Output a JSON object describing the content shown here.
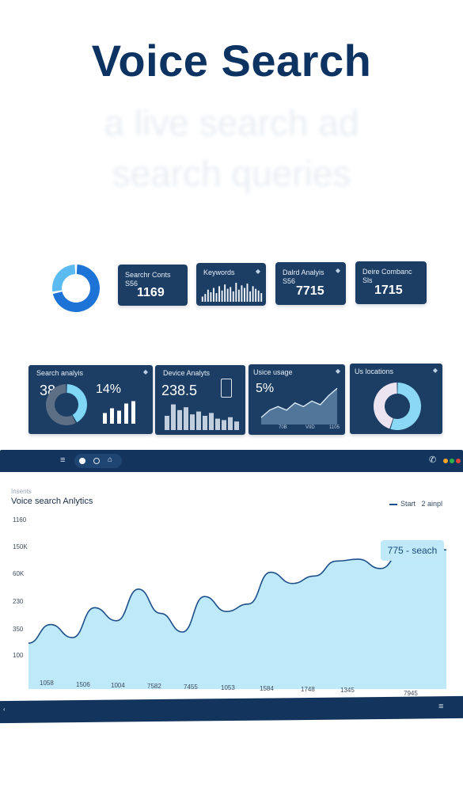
{
  "hero": {
    "title": "Voice Search",
    "ghost_line1": "a live search ad",
    "ghost_line2": "search queries"
  },
  "stat_tiles": [
    {
      "title": "Searchr Conts S56",
      "value": "1169"
    },
    {
      "title": "Keywords",
      "value": ""
    },
    {
      "title": "Dalrd Analyis S56",
      "value": "7715"
    },
    {
      "title": "Deire Combanc Sls",
      "value": "1715"
    }
  ],
  "panels": {
    "search_analysis": {
      "title": "Search analyis",
      "value_a": "38",
      "value_b": "14%"
    },
    "device_analysis": {
      "title": "Device Analyts",
      "value": "238.5"
    },
    "voice_usage": {
      "title": "Usice usage",
      "value": "5%",
      "xticks": [
        "70B",
        "VIID",
        "1105"
      ]
    },
    "locations": {
      "title": "Us locations"
    }
  },
  "window": {
    "breadcrumb": "Insents",
    "title": "Voice search Anlytics",
    "legend": [
      {
        "label": "Start"
      },
      {
        "label": "2 ainpl"
      }
    ],
    "callout": "775 - seach",
    "icons": [
      "menu-icon",
      "circle-filled-icon",
      "circle-icon",
      "lock-icon",
      "phone-icon"
    ],
    "colors": {
      "frame": "#13355d",
      "area": "#bde9f8",
      "line": "#1d4f8a",
      "dot_orange": "#f0a428",
      "dot_green": "#2fb24a",
      "dot_red": "#e2443a"
    }
  },
  "chart_data": {
    "type": "area",
    "title": "Voice search Anlytics",
    "xlabel": "",
    "ylabel": "",
    "yticks": [
      "1160",
      "150K",
      "60K",
      "230",
      "350",
      "100"
    ],
    "xticks": [
      "1058",
      "1506",
      "1004",
      "7582",
      "7455",
      "1053",
      "1584",
      "1748",
      "1345",
      "7945"
    ],
    "x": [
      0,
      1,
      2,
      3,
      4,
      5,
      6,
      7,
      8,
      9,
      10,
      11,
      12,
      13,
      14,
      15,
      16,
      17,
      18,
      19
    ],
    "values": [
      110,
      160,
      125,
      205,
      170,
      255,
      190,
      140,
      235,
      195,
      215,
      300,
      270,
      290,
      330,
      335,
      310,
      355,
      365,
      360
    ],
    "ylim": [
      0,
      420
    ],
    "grid": false,
    "legend_position": "top-right",
    "series": [
      {
        "name": "Start",
        "values": [
          110,
          160,
          125,
          205,
          170,
          255,
          190,
          140,
          235,
          195,
          215,
          300,
          270,
          290,
          330,
          335,
          310,
          355,
          365,
          360
        ]
      }
    ]
  },
  "mini_charts": {
    "keywords_bars": [
      6,
      9,
      14,
      11,
      16,
      10,
      18,
      13,
      20,
      15,
      17,
      12,
      22,
      14,
      19,
      16,
      21,
      12,
      18,
      15,
      13,
      10
    ],
    "search_bars": [
      0.45,
      0.65,
      0.55,
      0.85,
      0.95
    ],
    "device_bars": [
      0.5,
      0.9,
      0.7,
      0.8,
      0.55,
      0.65,
      0.5,
      0.6,
      0.4,
      0.35,
      0.45,
      0.3
    ],
    "voice_line": [
      0.15,
      0.35,
      0.45,
      0.35,
      0.55,
      0.45,
      0.6,
      0.5,
      0.75,
      0.95
    ],
    "donut_top_fraction": 0.72,
    "search_donut_fraction": 0.42,
    "location_donut_fraction": 0.55
  }
}
